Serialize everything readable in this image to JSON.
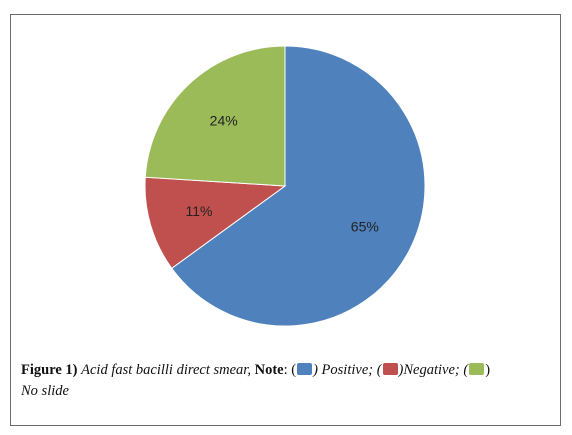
{
  "chart_data": {
    "type": "pie",
    "slices": [
      {
        "label": "Positive",
        "value": 65,
        "value_label": "65%",
        "color": "#4f81bd"
      },
      {
        "label": "Negative",
        "value": 11,
        "value_label": "11%",
        "color": "#c0504d"
      },
      {
        "label": "No slide",
        "value": 24,
        "value_label": "24%",
        "color": "#9bbb59"
      }
    ],
    "start_angle": "top (12 o'clock), clockwise"
  },
  "caption": {
    "figure_label": "Figure 1)",
    "figure_title": "Acid fast bacilli direct smear,",
    "note_label": "Note",
    "colon": ":",
    "open_paren": "(",
    "positive_text": ") Positive; (",
    "negative_text": ")Negative; (",
    "close_paren": ")",
    "no_slide_text": "No slide"
  }
}
